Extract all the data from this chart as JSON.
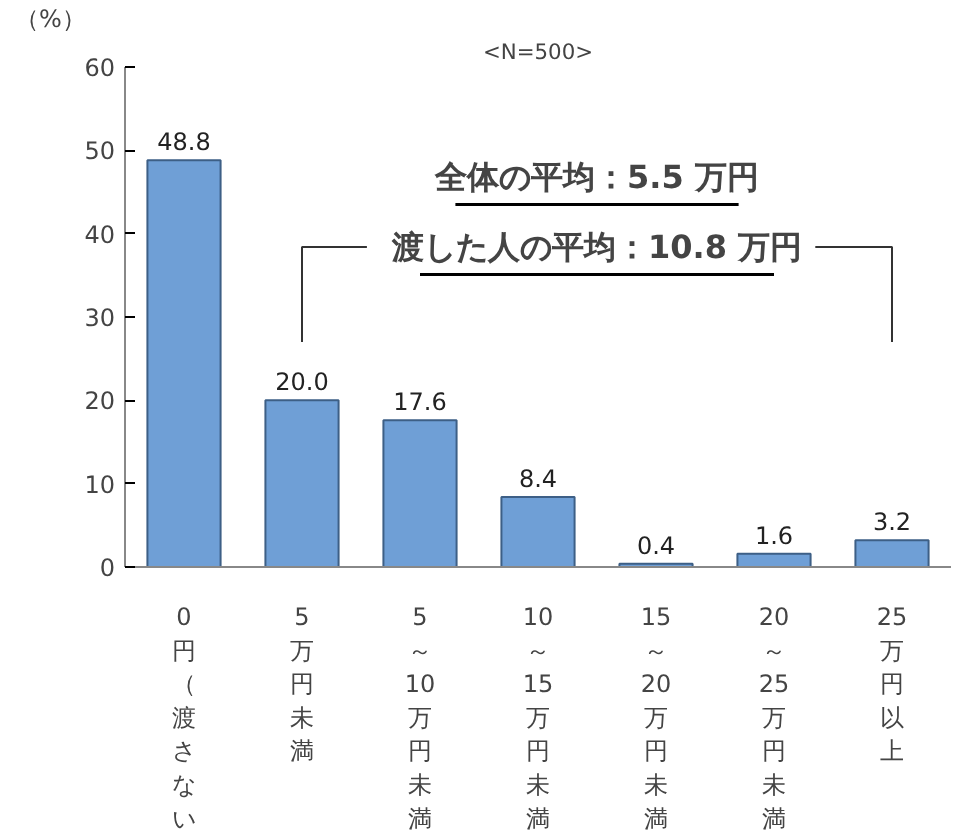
{
  "chart_data": {
    "type": "bar",
    "title": "<N=500>",
    "ylabel": "（%）",
    "categories": [
      "0円（渡さない",
      "5万円未満",
      "5～10万円未満",
      "10～15万円未満",
      "15～20万円未満",
      "20～25万円未満",
      "25万円以上"
    ],
    "values": [
      48.8,
      20.0,
      17.6,
      8.4,
      0.4,
      1.6,
      3.2
    ],
    "value_labels": [
      "48.8",
      "20.0",
      "17.6",
      "8.4",
      "0.4",
      "1.6",
      "3.2"
    ],
    "color": "#6f9fd6",
    "ylim": [
      0,
      60
    ],
    "yticks": [
      0,
      10,
      20,
      30,
      40,
      50,
      60
    ],
    "grid": false,
    "annotations": [
      "全体の平均：5.5 万円",
      "渡した人の平均：10.8 万円"
    ]
  }
}
